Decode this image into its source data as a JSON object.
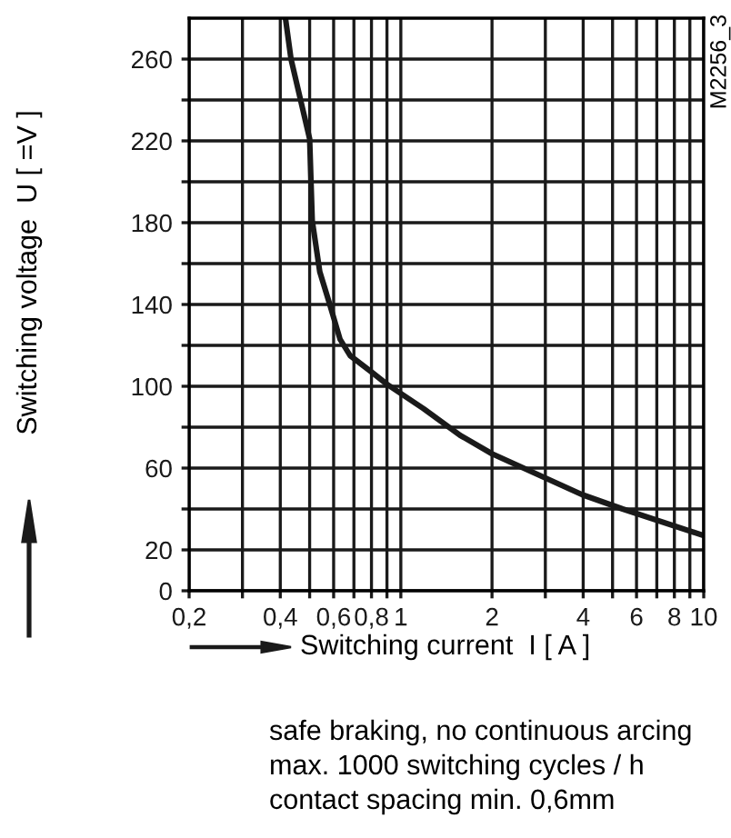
{
  "chart_data": {
    "type": "line",
    "xlabel": "Switching current  I [ A ]",
    "ylabel": "Switching voltage  U [ =V ]",
    "x": [
      0.416,
      0.434,
      0.5,
      0.51,
      0.54,
      0.58,
      0.63,
      0.68,
      0.8,
      0.9,
      1.19,
      1.57,
      2.0,
      3.97,
      5.4,
      10
    ],
    "series": [
      {
        "color": "#1a1a1a",
        "values": [
          280,
          260,
          221,
          181,
          156,
          141,
          123,
          115,
          107,
          101,
          89,
          76,
          67,
          47,
          40,
          27
        ]
      }
    ],
    "log": "x",
    "xlim": [
      0.2,
      10
    ],
    "xticks": [
      {
        "value": 0.2,
        "label": "0,2"
      },
      {
        "value": 0.3,
        "label": null
      },
      {
        "value": 0.4,
        "label": "0,4"
      },
      {
        "value": 0.5,
        "label": null
      },
      {
        "value": 0.6,
        "label": "0,6"
      },
      {
        "value": 0.7,
        "label": null
      },
      {
        "value": 0.8,
        "label": "0,8"
      },
      {
        "value": 0.9,
        "label": null
      },
      1,
      2,
      {
        "value": 3,
        "label": null
      },
      4,
      {
        "value": 5,
        "label": null
      },
      6,
      {
        "value": 7,
        "label": null
      },
      8,
      {
        "value": 9,
        "label": null
      },
      10
    ],
    "ylim": [
      0,
      280
    ],
    "yticks": [
      0,
      20,
      {
        "value": 40,
        "label": null
      },
      60,
      {
        "value": 80,
        "label": null
      },
      100,
      {
        "value": 120,
        "label": null
      },
      140,
      {
        "value": 160,
        "label": null
      },
      180,
      {
        "value": 200,
        "label": null
      },
      220,
      {
        "value": 240,
        "label": null
      },
      260
    ],
    "grid": true,
    "marker": "none",
    "line_style": "solid",
    "annotations": [
      "M2256_3",
      "safe braking, no continuous arcing",
      "max. 1000 switching cycles / h",
      "contact spacing min. 0,6mm"
    ]
  }
}
